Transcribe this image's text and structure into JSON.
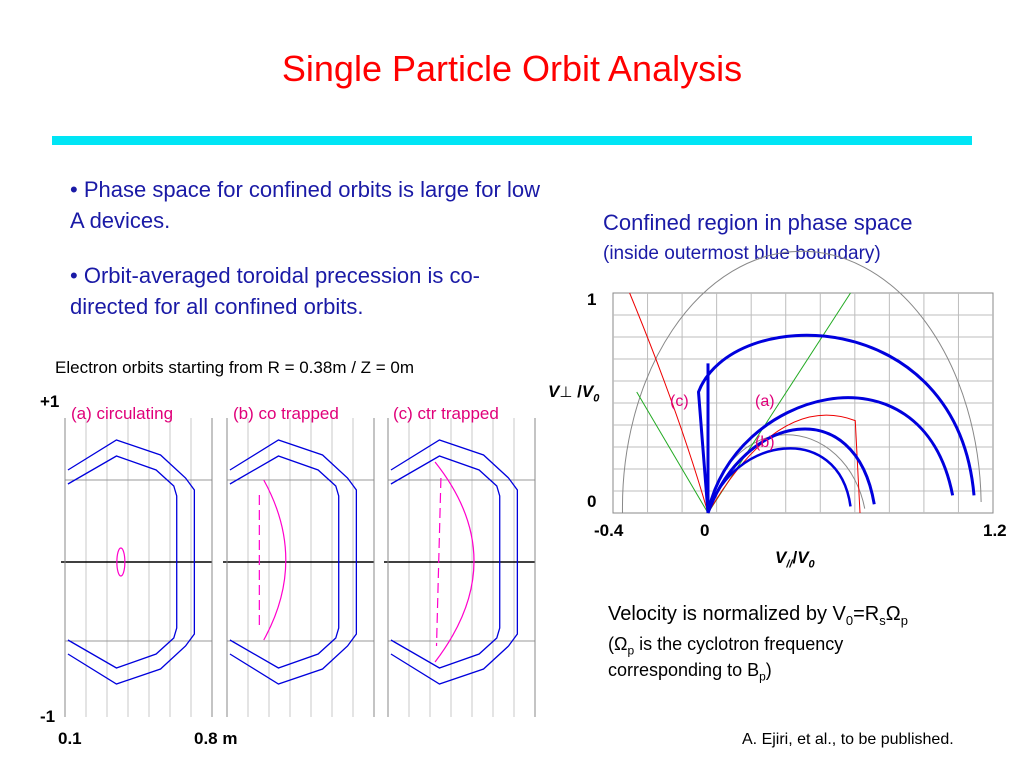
{
  "slide": {
    "title": "Single Particle Orbit Analysis",
    "bullets": [
      {
        "marker": "•",
        "text": "Phase space for confined orbits is large for low A devices."
      },
      {
        "marker": "•",
        "text": "Orbit-averaged toroidal precession is co-directed for all confined orbits."
      }
    ],
    "citation": "A. Ejiri, et al., to be published.",
    "colors": {
      "title": "#ff0000",
      "text": "#1a1aa6",
      "rule": "#00e5f5",
      "orbit_label": "#e0007a",
      "boundary": "#0000dd"
    }
  },
  "orbit_figure": {
    "caption": "Electron orbits starting from R = 0.38m / Z = 0m",
    "y_top": "+1",
    "y_bottom": "-1",
    "x_left": "0.1",
    "x_right": "0.8 m",
    "panel_labels": [
      "(a) circulating",
      "(b) co trapped",
      "(c) ctr trapped"
    ]
  },
  "phase_figure": {
    "title": "Confined region in phase space",
    "subtitle": "(inside outermost blue boundary)",
    "y_tick_top": "1",
    "y_tick_bottom": "0",
    "x_ticks": [
      "-0.4",
      "0",
      "1.2"
    ],
    "y_axis_label": {
      "main": "V",
      "perp": "⊥",
      "slash": " /",
      "v0": "V",
      "sub0": "0"
    },
    "x_axis_label": {
      "main": "V",
      "sub": "//",
      "slash": "/",
      "v0": "V",
      "sub0": "0"
    },
    "region_labels": [
      "(c)",
      "(a)",
      "(b)"
    ]
  },
  "chart_data": [
    {
      "type": "line",
      "title": "Electron orbits starting from R = 0.38m / Z = 0m",
      "xlabel": "m",
      "xlim": [
        0.1,
        0.8
      ],
      "ylim": [
        -1,
        1
      ],
      "x_tick_labels": [
        "0.1",
        "0.8 m"
      ],
      "y_tick_labels": [
        "+1",
        "-1"
      ],
      "series": [
        {
          "name": "(a) circulating",
          "color": "#ff00cc"
        },
        {
          "name": "(b) co trapped",
          "color": "#ff00cc"
        },
        {
          "name": "(c) ctr trapped",
          "color": "#ff00cc"
        }
      ],
      "grid": true
    },
    {
      "type": "line",
      "title": "Confined region in phase space",
      "subtitle": "(inside outermost blue boundary)",
      "xlabel": "V///V0",
      "ylabel": "V⊥ /V0",
      "xlim": [
        -0.4,
        1.2
      ],
      "ylim": [
        0,
        1
      ],
      "x_tick_labels": [
        "-0.4",
        "0",
        "1.2"
      ],
      "y_tick_labels": [
        "1",
        "0"
      ],
      "region_labels": [
        "(c)",
        "(a)",
        "(b)"
      ],
      "grid": true
    }
  ],
  "note": {
    "l1_pre": "Velocity is normalized by V",
    "l1_sub0": "0",
    "l1_eq": "=R",
    "l1_subs": "s",
    "l1_omega": "Ω",
    "l1_subp": "p",
    "l2_open": "(",
    "l2_omega": "Ω",
    "l2_subp": "p",
    "l2_rest": " is the cyclotron frequency",
    "l3_pre": "corresponding to B",
    "l3_subp": "p",
    "l3_close": ")"
  }
}
